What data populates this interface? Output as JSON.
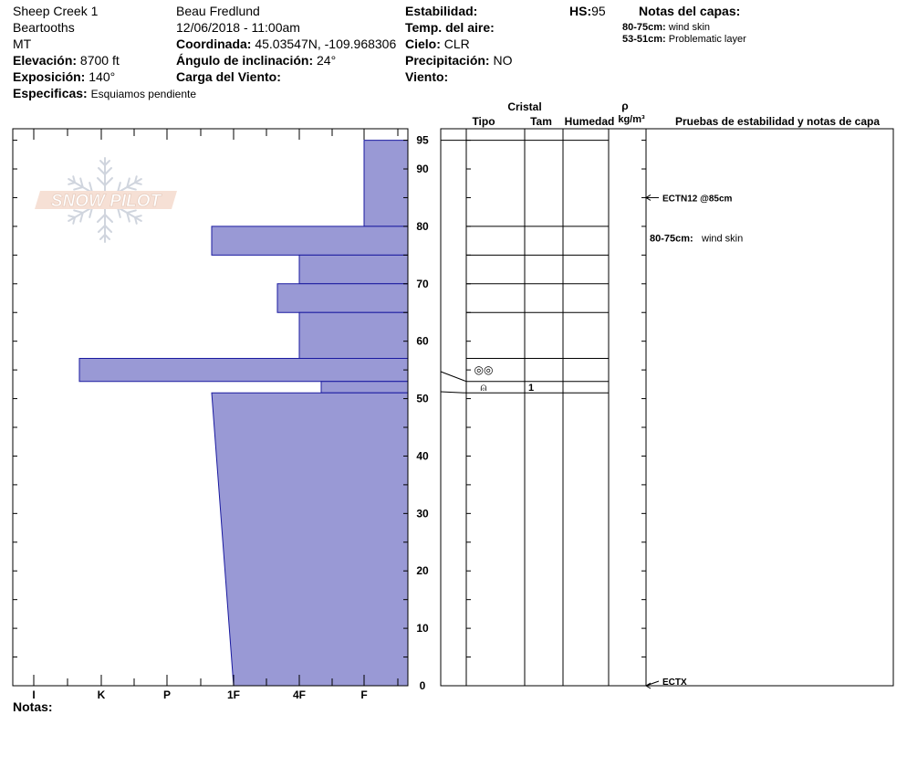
{
  "header": {
    "location": "Sheep Creek 1",
    "range": "Beartooths",
    "state": "MT",
    "elevation_label": "Elevación:",
    "elevation_value": "8700 ft",
    "aspect_label": "Exposición:",
    "aspect_value": "140°",
    "specifics_label": "Especificas:",
    "specifics_value": "Esquiamos pendiente",
    "observer": "Beau  Fredlund",
    "datetime": "12/06/2018 - 11:00am",
    "coord_label": "Coordinada:",
    "coord_value": "45.03547N, -109.968306",
    "incline_label": "Ángulo de inclinación:",
    "incline_value": "24°",
    "wind_load_label": "Carga del Viento:",
    "stability_label": "Estabilidad:",
    "air_temp_label": "Temp. del aire:",
    "sky_label": "Cielo:",
    "sky_value": "CLR",
    "precip_label": "Precipitación:",
    "precip_value": "NO",
    "wind_label": "Viento:",
    "hs_label": "HS:",
    "hs_value": "95",
    "layer_notes_title": "Notas del capas:",
    "layer_notes": [
      {
        "range": "80-75cm:",
        "text": "wind skin"
      },
      {
        "range": "53-51cm:",
        "text": "Problematic layer"
      }
    ],
    "notes_label": "Notas:"
  },
  "logo": {
    "text": "SNOW PILOT"
  },
  "columns": {
    "crystal": "Cristal",
    "type": "Tipo",
    "size": "Tam",
    "moisture": "Humedad",
    "rho": "ρ",
    "density_unit": "kg/m³",
    "tests": "Pruebas de estabilidad y notas de capa"
  },
  "crystals": [
    {
      "top": 57,
      "bottom": 53,
      "symbol": "◎◎",
      "size": ""
    },
    {
      "top": 53,
      "bottom": 51,
      "symbol": "⍝",
      "size": "1"
    }
  ],
  "tests": [
    {
      "depth": 85,
      "label": "ECTN12 @85cm"
    },
    {
      "depth": 0,
      "label": "ECTX"
    }
  ],
  "layer_annotation": {
    "range": "80-75cm:",
    "text": "wind skin"
  },
  "colors": {
    "hardness_fill": "#9999D5",
    "hardness_stroke": "#1a1aa0"
  },
  "chart_data": {
    "type": "bar",
    "title": "",
    "xlabel": "",
    "ylabel": "",
    "hardness_scale": [
      "I",
      "K",
      "P",
      "1F",
      "4F",
      "F"
    ],
    "hardness_scale_note": "hand hardness axis runs right(F) to left(I)",
    "ylim": [
      0,
      97
    ],
    "y_ticks": [
      0,
      10,
      20,
      30,
      40,
      50,
      60,
      70,
      80,
      90,
      95
    ],
    "layers": [
      {
        "top": 95,
        "bottom": 80,
        "hardness": "F"
      },
      {
        "top": 80,
        "bottom": 75,
        "hardness": "1F+"
      },
      {
        "top": 75,
        "bottom": 70,
        "hardness": "4F"
      },
      {
        "top": 70,
        "bottom": 65,
        "hardness": "4F+"
      },
      {
        "top": 65,
        "bottom": 57,
        "hardness": "4F"
      },
      {
        "top": 57,
        "bottom": 53,
        "hardness": "K+"
      },
      {
        "top": 53,
        "bottom": 51,
        "hardness": "4F-"
      },
      {
        "top": 51,
        "bottom": 0,
        "hardness": "1F+ to 1F",
        "gradient_to": "1F"
      }
    ],
    "grid": false
  }
}
